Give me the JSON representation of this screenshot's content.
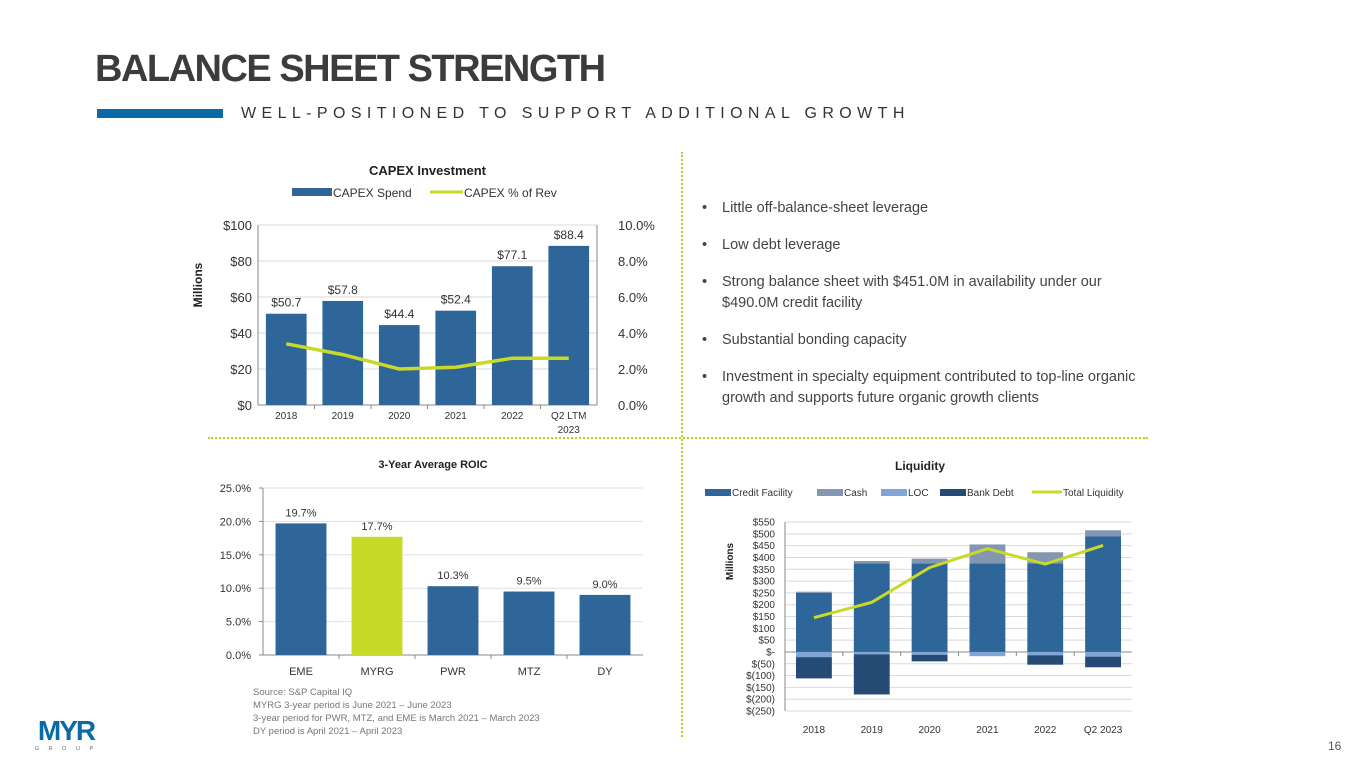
{
  "header": {
    "title": "BALANCE SHEET STRENGTH",
    "subtitle": "WELL-POSITIONED TO SUPPORT ADDITIONAL GROWTH",
    "accent_color": "#0a6aa8"
  },
  "bullets": [
    "Little off-balance-sheet leverage",
    "Low debt leverage",
    "Strong balance sheet with $451.0M in availability under our $490.0M credit facility",
    "Substantial bonding capacity",
    "Investment in specialty equipment contributed to top-line organic growth and supports future organic growth clients"
  ],
  "footnote": [
    "Source: S&P Capital IQ",
    "MYRG 3-year period is June 2021 – June 2023",
    "3-year period for PWR, MTZ, and EME is March 2021 – March 2023",
    "DY period is April 2021 – April 2023"
  ],
  "logo": {
    "text": "MYR",
    "subtext": "G R O U P"
  },
  "page_number": "16",
  "colors": {
    "bar_blue": "#2f6699",
    "accent_green": "#c8d92a",
    "cash": "#8497b0",
    "loc": "#7fa6d4",
    "bank_debt": "#254b75"
  },
  "chart_data": [
    {
      "type": "bar",
      "title": "CAPEX Investment",
      "categories": [
        "2018",
        "2019",
        "2020",
        "2021",
        "2022",
        "Q2 LTM 2023"
      ],
      "series": [
        {
          "name": "CAPEX Spend",
          "type": "bar",
          "axis": "left",
          "values": [
            50.7,
            57.8,
            44.4,
            52.4,
            77.1,
            88.4
          ],
          "labels": [
            "$50.7",
            "$57.8",
            "$44.4",
            "$52.4",
            "$77.1",
            "$88.4"
          ]
        },
        {
          "name": "CAPEX % of Rev",
          "type": "line",
          "axis": "right",
          "values": [
            3.4,
            2.8,
            2.0,
            2.1,
            2.6,
            2.6
          ]
        }
      ],
      "ylabel": "Millions",
      "ylim": [
        0,
        100
      ],
      "yticks": [
        "$0",
        "$20",
        "$40",
        "$60",
        "$80",
        "$100"
      ],
      "y2lim": [
        0,
        10
      ],
      "y2ticks": [
        "0.0%",
        "2.0%",
        "4.0%",
        "6.0%",
        "8.0%",
        "10.0%"
      ],
      "legend": "top",
      "grid": true
    },
    {
      "type": "bar",
      "title": "3-Year Average ROIC",
      "categories": [
        "EME",
        "MYRG",
        "PWR",
        "MTZ",
        "DY"
      ],
      "values": [
        19.7,
        17.7,
        10.3,
        9.5,
        9.0
      ],
      "labels": [
        "19.7%",
        "17.7%",
        "10.3%",
        "9.5%",
        "9.0%"
      ],
      "highlight": "MYRG",
      "ylim": [
        0,
        25
      ],
      "yticks": [
        "0.0%",
        "5.0%",
        "10.0%",
        "15.0%",
        "20.0%",
        "25.0%"
      ],
      "grid": true
    },
    {
      "type": "bar",
      "stacked": true,
      "title": "Liquidity",
      "categories": [
        "2018",
        "2019",
        "2020",
        "2021",
        "2022",
        "Q2 2023"
      ],
      "series": [
        {
          "name": "Credit Facility",
          "values": [
            250,
            375,
            375,
            375,
            375,
            490
          ]
        },
        {
          "name": "Cash",
          "values": [
            5,
            10,
            20,
            80,
            47,
            25
          ]
        },
        {
          "name": "LOC",
          "values": [
            -22,
            -10,
            -12,
            -18,
            -14,
            -20
          ]
        },
        {
          "name": "Bank Debt",
          "values": [
            -90,
            -170,
            -28,
            0,
            -40,
            -45
          ]
        },
        {
          "name": "Total Liquidity",
          "type": "line",
          "values": [
            145,
            210,
            357,
            437,
            372,
            451
          ]
        }
      ],
      "ylabel": "Millions",
      "ylim": [
        -250,
        550
      ],
      "yticks": [
        "$(250)",
        "$(200)",
        "$(150)",
        "$(100)",
        "$(50)",
        "$-",
        "$50",
        "$100",
        "$150",
        "$200",
        "$250",
        "$300",
        "$350",
        "$400",
        "$450",
        "$500",
        "$550"
      ],
      "legend": "top",
      "grid": true
    }
  ]
}
